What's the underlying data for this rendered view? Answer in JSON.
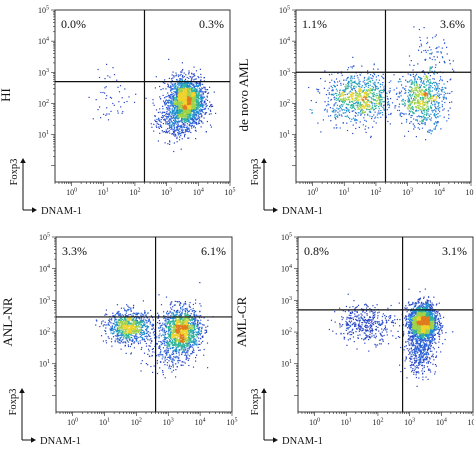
{
  "chart_data": [
    {
      "type": "scatter",
      "group_label": "HI",
      "xlabel": "DNAM-1",
      "ylabel": "Foxp3",
      "x_scale": "log",
      "y_scale": "log",
      "xlim": [
        0.3,
        100000
      ],
      "ylim": [
        0.3,
        100000
      ],
      "x_ticks": [
        "10^0",
        "10^1",
        "10^2",
        "10^3",
        "10^4",
        "10^5"
      ],
      "y_ticks": [
        "10^1",
        "10^2",
        "10^3",
        "10^4",
        "10^5"
      ],
      "gate": {
        "x": 200,
        "y": 500
      },
      "quadrant_percentages": {
        "upper_left": "0.0%",
        "upper_right": "0.3%"
      },
      "populations": [
        {
          "x": 4000,
          "y": 120,
          "sx": 0.28,
          "sy": 0.38,
          "n": 2200
        },
        {
          "x": 1500,
          "y": 25,
          "sx": 0.3,
          "sy": 0.3,
          "n": 250
        },
        {
          "x": 20,
          "y": 200,
          "sx": 0.4,
          "sy": 0.45,
          "n": 50
        }
      ]
    },
    {
      "type": "scatter",
      "group_label": "de novo AML",
      "xlabel": "DNAM-1",
      "ylabel": "Foxp3",
      "x_scale": "log",
      "y_scale": "log",
      "xlim": [
        0.3,
        100000
      ],
      "ylim": [
        0.3,
        100000
      ],
      "x_ticks": [
        "10^0",
        "10^1",
        "10^2",
        "10^3",
        "10^4",
        "10^5"
      ],
      "y_ticks": [
        "10^1",
        "10^2",
        "10^3",
        "10^4",
        "10^5"
      ],
      "gate": {
        "x": 200,
        "y": 1000
      },
      "quadrant_percentages": {
        "upper_left": "1.1%",
        "upper_right": "3.6%"
      },
      "populations": [
        {
          "x": 30,
          "y": 150,
          "sx": 0.55,
          "sy": 0.4,
          "n": 900
        },
        {
          "x": 3000,
          "y": 150,
          "sx": 0.35,
          "sy": 0.45,
          "n": 700
        },
        {
          "x": 5000,
          "y": 3000,
          "sx": 0.35,
          "sy": 0.35,
          "n": 70
        }
      ]
    },
    {
      "type": "scatter",
      "group_label": "ANL-NR",
      "xlabel": "DNAM-1",
      "ylabel": "Foxp3",
      "x_scale": "log",
      "y_scale": "log",
      "xlim": [
        0.3,
        100000
      ],
      "ylim": [
        0.3,
        100000
      ],
      "x_ticks": [
        "10^0",
        "10^1",
        "10^2",
        "10^3",
        "10^4",
        "10^5"
      ],
      "y_ticks": [
        "10^1",
        "10^2",
        "10^3",
        "10^4",
        "10^5"
      ],
      "gate": {
        "x": 400,
        "y": 300
      },
      "quadrant_percentages": {
        "upper_left": "3.3%",
        "upper_right": "6.1%"
      },
      "populations": [
        {
          "x": 60,
          "y": 150,
          "sx": 0.35,
          "sy": 0.25,
          "n": 900
        },
        {
          "x": 2500,
          "y": 120,
          "sx": 0.3,
          "sy": 0.35,
          "n": 1400
        },
        {
          "x": 1000,
          "y": 20,
          "sx": 0.4,
          "sy": 0.3,
          "n": 200
        }
      ]
    },
    {
      "type": "scatter",
      "group_label": "AML-CR",
      "xlabel": "DNAM-1",
      "ylabel": "Foxp3",
      "x_scale": "log",
      "y_scale": "log",
      "xlim": [
        0.3,
        100000
      ],
      "ylim": [
        0.3,
        100000
      ],
      "x_ticks": [
        "10^0",
        "10^1",
        "10^2",
        "10^3",
        "10^4",
        "10^5"
      ],
      "y_ticks": [
        "10^1",
        "10^2",
        "10^3",
        "10^4",
        "10^5"
      ],
      "gate": {
        "x": 600,
        "y": 500
      },
      "quadrant_percentages": {
        "upper_left": "0.8%",
        "upper_right": "3.1%"
      },
      "populations": [
        {
          "x": 2500,
          "y": 200,
          "sx": 0.22,
          "sy": 0.3,
          "n": 2200
        },
        {
          "x": 40,
          "y": 200,
          "sx": 0.45,
          "sy": 0.3,
          "n": 400
        },
        {
          "x": 2000,
          "y": 20,
          "sx": 0.25,
          "sy": 0.3,
          "n": 350
        }
      ]
    }
  ]
}
